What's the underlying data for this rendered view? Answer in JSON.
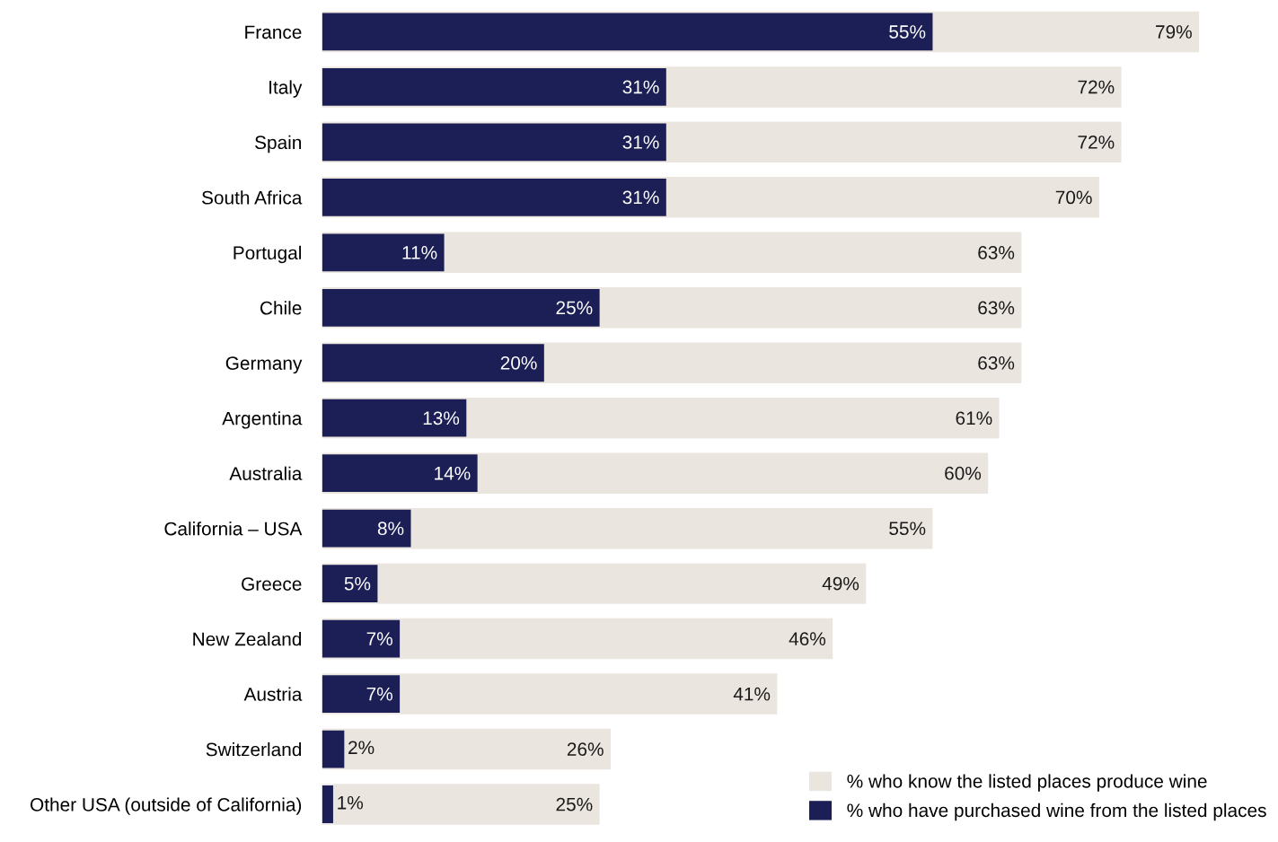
{
  "chart_data": {
    "type": "bar",
    "orientation": "horizontal",
    "categories": [
      "France",
      "Italy",
      "Spain",
      "South Africa",
      "Portugal",
      "Chile",
      "Germany",
      "Argentina",
      "Australia",
      "California – USA",
      "Greece",
      "New Zealand",
      "Austria",
      "Switzerland",
      "Other USA (outside of California)"
    ],
    "series": [
      {
        "name": "% who know the listed places produce wine",
        "color": "#ebe5df",
        "values": [
          79,
          72,
          72,
          70,
          63,
          63,
          63,
          61,
          60,
          55,
          49,
          46,
          41,
          26,
          25
        ],
        "value_labels": [
          "79%",
          "72%",
          "72%",
          "70%",
          "63%",
          "63%",
          "63%",
          "61%",
          "60%",
          "55%",
          "49%",
          "46%",
          "41%",
          "26%",
          "25%"
        ]
      },
      {
        "name": "% who have purchased wine from the listed places",
        "color": "#1b1f55",
        "values": [
          55,
          31,
          31,
          31,
          11,
          25,
          20,
          13,
          14,
          8,
          5,
          7,
          7,
          2,
          1
        ],
        "value_labels": [
          "55%",
          "31%",
          "31%",
          "31%",
          "11%",
          "25%",
          "20%",
          "13%",
          "14%",
          "8%",
          "5%",
          "7%",
          "7%",
          "2%",
          "1%"
        ]
      }
    ],
    "tick_labels": "y",
    "legend": "bottom right"
  }
}
